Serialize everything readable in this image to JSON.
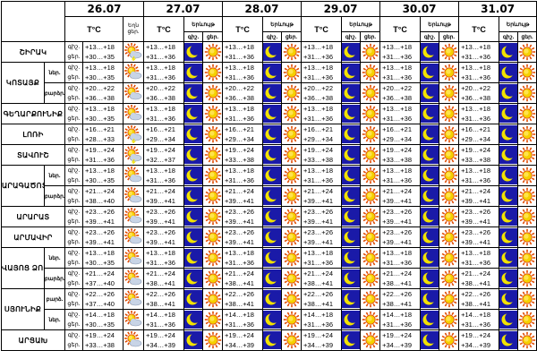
{
  "header": {
    "dates": [
      "26.07",
      "27.07",
      "28.07",
      "29.07",
      "30.07",
      "31.07"
    ],
    "tc": "T°C",
    "weather_label_line1": "Եղն",
    "weather_label_line2": "ցեր.",
    "night_label": "Երևույթ",
    "col_night": "գիշ.",
    "col_day": "ցեր."
  },
  "labels": {
    "night": "գիշ.",
    "day": "ցեր.",
    "lower": "ներ.",
    "upper": "բարձր."
  },
  "icons": {
    "moon": "moon-icon",
    "sun": "sun-icon",
    "sun_cloud": "sun-cloud-icon",
    "sun_cloud_storm": "sun-cloud-storm-icon"
  },
  "colors": {
    "moon_bg": "#1a1aa8",
    "moon": "#f2e200",
    "sun": "#f5d000",
    "sun_core": "#ffe34d",
    "sun_ray": "#e04a00",
    "cloud": "#c8d4e6"
  },
  "rows": [
    {
      "region": "ՇԻՐԱԿ",
      "parts": [
        {
          "part": "",
          "d26": {
            "night": "+13…+18",
            "day": "+30…+35",
            "icon": "sun_cloud_storm"
          },
          "days": [
            {
              "night": "+13…+18",
              "day": "+31…+36"
            },
            {
              "night": "+13…+18",
              "day": "+31…+36"
            },
            {
              "night": "+13…+18",
              "day": "+31…+36"
            },
            {
              "night": "+13…+18",
              "day": "+31…+36"
            },
            {
              "night": "+13…+18",
              "day": "+31…+36"
            }
          ]
        }
      ]
    },
    {
      "region": "ԿՈՏԱՅՔ",
      "parts": [
        {
          "part": "ներ.",
          "d26": {
            "night": "+13…+18",
            "day": "+30…+35",
            "icon": "sun_cloud"
          },
          "days": [
            {
              "night": "+13…+18",
              "day": "+31…+36"
            },
            {
              "night": "+13…+18",
              "day": "+31…+36"
            },
            {
              "night": "+13…+18",
              "day": "+31…+36"
            },
            {
              "night": "+13…+18",
              "day": "+31…+36"
            },
            {
              "night": "+13…+18",
              "day": "+31…+36"
            }
          ]
        },
        {
          "part": "բարձր.",
          "d26": {
            "night": "+20…+22",
            "day": "+36…+38",
            "icon": "sun_cloud"
          },
          "days": [
            {
              "night": "+20…+22",
              "day": "+36…+38"
            },
            {
              "night": "+20…+22",
              "day": "+36…+38"
            },
            {
              "night": "+20…+22",
              "day": "+36…+38"
            },
            {
              "night": "+20…+22",
              "day": "+36…+38"
            },
            {
              "night": "+20…+22",
              "day": "+36…+38"
            }
          ]
        }
      ]
    },
    {
      "region": "ԳԵՂԱՐՔՈՒՆԻՔ",
      "parts": [
        {
          "part": "",
          "d26": {
            "night": "+13…+18",
            "day": "+30…+35",
            "icon": "sun_cloud"
          },
          "days": [
            {
              "night": "+13…+18",
              "day": "+31…+36"
            },
            {
              "night": "+13…+18",
              "day": "+31…+36"
            },
            {
              "night": "+13…+18",
              "day": "+31…+36"
            },
            {
              "night": "+13…+18",
              "day": "+31…+36"
            },
            {
              "night": "+13…+18",
              "day": "+31…+36"
            }
          ]
        }
      ]
    },
    {
      "region": "ԼՈՌԻ",
      "parts": [
        {
          "part": "",
          "d26": {
            "night": "+16…+21",
            "day": "+28…+33",
            "icon": "sun_cloud_storm"
          },
          "days": [
            {
              "night": "+16…+21",
              "day": "+29…+34"
            },
            {
              "night": "+16…+21",
              "day": "+29…+34"
            },
            {
              "night": "+16…+21",
              "day": "+29…+34"
            },
            {
              "night": "+16…+21",
              "day": "+29…+34"
            },
            {
              "night": "+16…+21",
              "day": "+29…+34"
            }
          ]
        }
      ]
    },
    {
      "region": "ՏԱՎՈՒՇ",
      "parts": [
        {
          "part": "",
          "d26": {
            "night": "+19…+24",
            "day": "+31…+36",
            "icon": "sun_cloud_storm"
          },
          "days": [
            {
              "night": "+19…+24",
              "day": "+32…+37"
            },
            {
              "night": "+19…+24",
              "day": "+33…+38"
            },
            {
              "night": "+19…+24",
              "day": "+33…+38"
            },
            {
              "night": "+19…+24",
              "day": "+33…+38"
            },
            {
              "night": "+19…+24",
              "day": "+33…+38"
            }
          ]
        }
      ]
    },
    {
      "region": "ԱՐԱԳԱԾՈՏՆ",
      "parts": [
        {
          "part": "ներ.",
          "d26": {
            "night": "+13…+18",
            "day": "+30…+35",
            "icon": "sun_cloud"
          },
          "days": [
            {
              "night": "+13…+18",
              "day": "+31…+36"
            },
            {
              "night": "+13…+18",
              "day": "+31…+36"
            },
            {
              "night": "+13…+18",
              "day": "+31…+36"
            },
            {
              "night": "+13…+18",
              "day": "+31…+36"
            },
            {
              "night": "+13…+18",
              "day": "+31…+36"
            }
          ]
        },
        {
          "part": "բարձր.",
          "d26": {
            "night": "+21…+24",
            "day": "+38…+40",
            "icon": "sun_cloud"
          },
          "days": [
            {
              "night": "+21…+24",
              "day": "+39…+41"
            },
            {
              "night": "+21…+24",
              "day": "+39…+41"
            },
            {
              "night": "+21…+24",
              "day": "+39…+41"
            },
            {
              "night": "+21…+24",
              "day": "+39…+41"
            },
            {
              "night": "+21…+24",
              "day": "+39…+41"
            }
          ]
        }
      ]
    },
    {
      "region": "ԱՐԱՐԱՏ",
      "parts": [
        {
          "part": "",
          "d26": {
            "night": "+23…+26",
            "day": "+39…+41",
            "icon": "sun_cloud"
          },
          "days": [
            {
              "night": "+23…+26",
              "day": "+39…+41"
            },
            {
              "night": "+23…+26",
              "day": "+39…+41"
            },
            {
              "night": "+23…+26",
              "day": "+39…+41"
            },
            {
              "night": "+23…+26",
              "day": "+39…+41"
            },
            {
              "night": "+23…+26",
              "day": "+39…+41"
            }
          ]
        }
      ]
    },
    {
      "region": "ԱՐՄԱՎԻՐ",
      "parts": [
        {
          "part": "",
          "d26": {
            "night": "+23…+26",
            "day": "+39…+41",
            "icon": "sun_cloud"
          },
          "days": [
            {
              "night": "+23…+26",
              "day": "+39…+41"
            },
            {
              "night": "+23…+26",
              "day": "+39…+41"
            },
            {
              "night": "+23…+26",
              "day": "+39…+41"
            },
            {
              "night": "+23…+26",
              "day": "+39…+41"
            },
            {
              "night": "+23…+26",
              "day": "+39…+41"
            }
          ]
        }
      ]
    },
    {
      "region": "ՎԱՅՈՑ ՁՈՐ",
      "parts": [
        {
          "part": "ներ.",
          "d26": {
            "night": "+13…+18",
            "day": "+30…+35",
            "icon": "sun_cloud"
          },
          "days": [
            {
              "night": "+13…+18",
              "day": "+31…+36"
            },
            {
              "night": "+13…+18",
              "day": "+31…+36"
            },
            {
              "night": "+13…+18",
              "day": "+31…+36"
            },
            {
              "night": "+13…+18",
              "day": "+31…+36"
            },
            {
              "night": "+13…+18",
              "day": "+31…+36"
            }
          ]
        },
        {
          "part": "բարձր.",
          "d26": {
            "night": "+21…+24",
            "day": "+37…+40",
            "icon": "sun_cloud"
          },
          "days": [
            {
              "night": "+21…+24",
              "day": "+38…+41"
            },
            {
              "night": "+21…+24",
              "day": "+38…+41"
            },
            {
              "night": "+21…+24",
              "day": "+38…+41"
            },
            {
              "night": "+21…+24",
              "day": "+38…+41"
            },
            {
              "night": "+21…+24",
              "day": "+38…+41"
            }
          ]
        }
      ]
    },
    {
      "region": "ՍՅՈՒՆԻՔ",
      "parts": [
        {
          "part": "բարձ.",
          "d26": {
            "night": "+22…+26",
            "day": "+37…+40",
            "icon": "sun_cloud"
          },
          "days": [
            {
              "night": "+22…+26",
              "day": "+38…+41"
            },
            {
              "night": "+22…+26",
              "day": "+38…+41"
            },
            {
              "night": "+22…+26",
              "day": "+38…+41"
            },
            {
              "night": "+22…+26",
              "day": "+38…+41"
            },
            {
              "night": "+22…+26",
              "day": "+38…+41"
            }
          ]
        },
        {
          "part": "ներ.",
          "d26": {
            "night": "+14…+18",
            "day": "+30…+35",
            "icon": "sun_cloud"
          },
          "days": [
            {
              "night": "+14…+18",
              "day": "+31…+36"
            },
            {
              "night": "+14…+18",
              "day": "+31…+36"
            },
            {
              "night": "+14…+18",
              "day": "+31…+36"
            },
            {
              "night": "+14…+18",
              "day": "+31…+36"
            },
            {
              "night": "+14…+18",
              "day": "+31…+36"
            }
          ]
        }
      ]
    },
    {
      "region": "ԱՐՑԱԽ",
      "parts": [
        {
          "part": "",
          "d26": {
            "night": "+19…+24",
            "day": "+33…+38",
            "icon": "sun_cloud"
          },
          "days": [
            {
              "night": "+19…+24",
              "day": "+34…+39"
            },
            {
              "night": "+19…+24",
              "day": "+34…+39"
            },
            {
              "night": "+19…+24",
              "day": "+34…+39"
            },
            {
              "night": "+19…+24",
              "day": "+34…+39"
            },
            {
              "night": "+19…+24",
              "day": "+34…+39"
            }
          ]
        }
      ]
    }
  ]
}
